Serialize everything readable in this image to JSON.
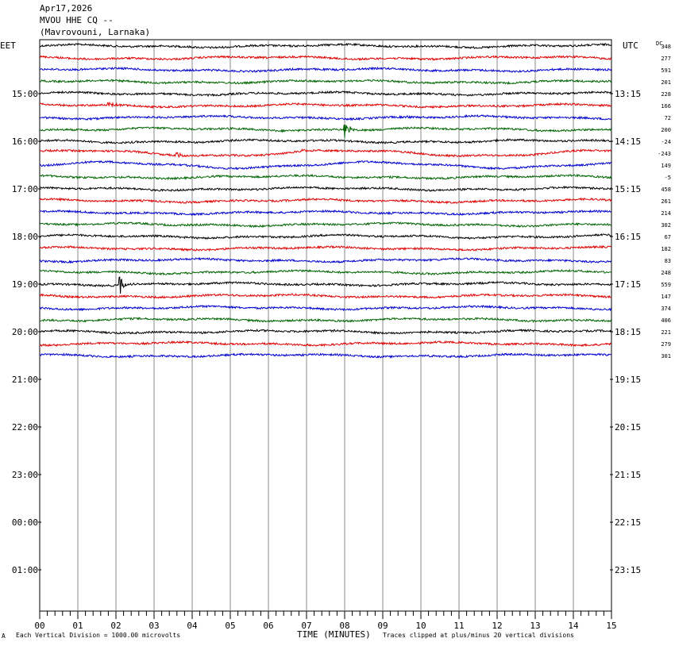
{
  "header": {
    "date": "Apr17,2026",
    "station": "MVOU HHE CQ --",
    "location": "(Mavrovouni, Larnaka)"
  },
  "left_zone_label": "EET",
  "right_zone_label": "UTC",
  "dc_label": "DC",
  "footer": {
    "scale_note": "Each Vertical Division = 1000.00 microvolts",
    "x_title": "TIME (MINUTES)",
    "clip_note": "Traces clipped at plus/minus 20 vertical divisions",
    "corner_mark": "A"
  },
  "chart_data": {
    "type": "line",
    "title": "MVOU HHE CQ --",
    "xlabel": "TIME (MINUTES)",
    "ylabel": "",
    "x_ticks": [
      "00",
      "01",
      "02",
      "03",
      "04",
      "05",
      "06",
      "07",
      "08",
      "09",
      "10",
      "11",
      "12",
      "13",
      "14",
      "15"
    ],
    "xlim": [
      0,
      15
    ],
    "grid": true,
    "left_hour_labels": [
      "15:00",
      "16:00",
      "17:00",
      "18:00",
      "19:00",
      "20:00",
      "21:00",
      "22:00",
      "23:00",
      "00:00",
      "01:00"
    ],
    "right_hour_labels": [
      "13:15",
      "14:15",
      "15:15",
      "16:15",
      "17:15",
      "18:15",
      "19:15",
      "20:15",
      "21:15",
      "22:15",
      "23:15"
    ],
    "trace_colors": [
      "#000000",
      "#e00000",
      "#0000d0",
      "#006400"
    ],
    "series": [
      {
        "dc": "348"
      },
      {
        "dc": "277"
      },
      {
        "dc": "591"
      },
      {
        "dc": "201"
      },
      {
        "dc": "228"
      },
      {
        "dc": "166"
      },
      {
        "dc": "72"
      },
      {
        "dc": "200"
      },
      {
        "dc": "-24"
      },
      {
        "dc": "-243"
      },
      {
        "dc": "149"
      },
      {
        "dc": "-5"
      },
      {
        "dc": "458"
      },
      {
        "dc": "261"
      },
      {
        "dc": "214"
      },
      {
        "dc": "302"
      },
      {
        "dc": "67"
      },
      {
        "dc": "182"
      },
      {
        "dc": "83"
      },
      {
        "dc": "248"
      },
      {
        "dc": "559"
      },
      {
        "dc": "147"
      },
      {
        "dc": "374"
      },
      {
        "dc": "406"
      },
      {
        "dc": "221"
      },
      {
        "dc": "279"
      },
      {
        "dc": "301"
      }
    ],
    "events": [
      {
        "trace": 5,
        "minute": 1.8,
        "strength": 4
      },
      {
        "trace": 6,
        "minute": 9.6,
        "strength": 3
      },
      {
        "trace": 7,
        "minute": 8.0,
        "strength": 14
      },
      {
        "trace": 9,
        "minute": 3.6,
        "strength": 5
      },
      {
        "trace": 9,
        "minute": 6.9,
        "strength": 3
      },
      {
        "trace": 20,
        "minute": 2.1,
        "strength": 12
      }
    ]
  }
}
